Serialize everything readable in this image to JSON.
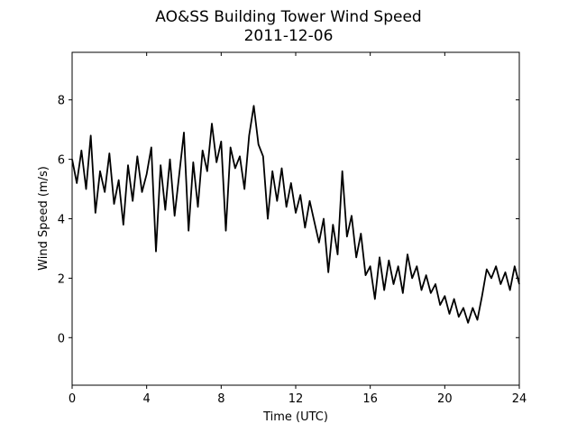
{
  "chart_data": {
    "type": "line",
    "title": "AO&SS Building Tower Wind Speed",
    "subtitle": "2011-12-06",
    "x_label": "Time (UTC)",
    "y_label": "Wind Speed (m/s)",
    "xlim": [
      0,
      24
    ],
    "xticks": [
      0,
      4,
      8,
      12,
      16,
      20,
      24
    ],
    "ylim": [
      -1.6,
      9.6
    ],
    "yticks": [
      0,
      2,
      4,
      6,
      8
    ],
    "grid": false,
    "series": [
      {
        "color": "#000000",
        "x": [
          0,
          0.25,
          0.5,
          0.75,
          1,
          1.25,
          1.5,
          1.75,
          2,
          2.25,
          2.5,
          2.75,
          3,
          3.25,
          3.5,
          3.75,
          4,
          4.25,
          4.5,
          4.75,
          5,
          5.25,
          5.5,
          5.75,
          6,
          6.25,
          6.5,
          6.75,
          7,
          7.25,
          7.5,
          7.75,
          8,
          8.25,
          8.5,
          8.75,
          9,
          9.25,
          9.5,
          9.75,
          10,
          10.25,
          10.5,
          10.75,
          11,
          11.25,
          11.5,
          11.75,
          12,
          12.25,
          12.5,
          12.75,
          13,
          13.25,
          13.5,
          13.75,
          14,
          14.25,
          14.5,
          14.75,
          15,
          15.25,
          15.5,
          15.75,
          16,
          16.25,
          16.5,
          16.75,
          17,
          17.25,
          17.5,
          17.75,
          18,
          18.25,
          18.5,
          18.75,
          19,
          19.25,
          19.5,
          19.75,
          20,
          20.25,
          20.5,
          20.75,
          21,
          21.25,
          21.5,
          21.75,
          22,
          22.25,
          22.5,
          22.75,
          23,
          23.25,
          23.5,
          23.75,
          24
        ],
        "values": [
          6.0,
          5.2,
          6.3,
          5.0,
          6.8,
          4.2,
          5.6,
          4.9,
          6.2,
          4.5,
          5.3,
          3.8,
          5.8,
          4.6,
          6.1,
          4.9,
          5.5,
          6.4,
          2.9,
          5.8,
          4.3,
          6.0,
          4.1,
          5.5,
          6.9,
          3.6,
          5.9,
          4.4,
          6.3,
          5.6,
          7.2,
          5.9,
          6.6,
          3.6,
          6.4,
          5.7,
          6.1,
          5.0,
          6.8,
          7.8,
          6.5,
          6.1,
          4.0,
          5.6,
          4.6,
          5.7,
          4.4,
          5.2,
          4.2,
          4.8,
          3.7,
          4.6,
          3.9,
          3.2,
          4.0,
          2.2,
          3.8,
          2.8,
          5.6,
          3.4,
          4.1,
          2.7,
          3.5,
          2.1,
          2.4,
          1.3,
          2.7,
          1.6,
          2.6,
          1.8,
          2.4,
          1.5,
          2.8,
          2.0,
          2.4,
          1.6,
          2.1,
          1.5,
          1.8,
          1.1,
          1.4,
          0.8,
          1.3,
          0.7,
          1.0,
          0.5,
          1.0,
          0.6,
          1.4,
          2.3,
          2.0,
          2.4,
          1.8,
          2.2,
          1.6,
          2.4,
          1.8
        ]
      }
    ]
  }
}
